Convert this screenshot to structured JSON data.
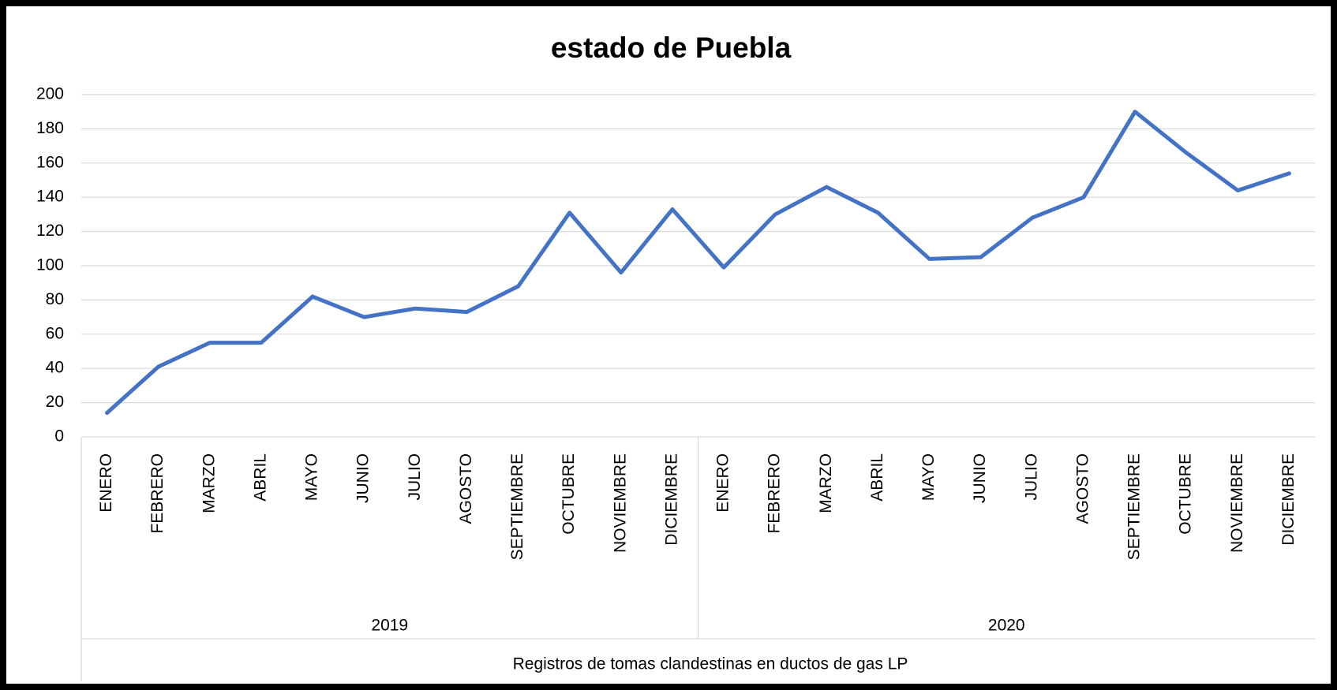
{
  "chart_data": {
    "type": "line",
    "title": "estado de Puebla",
    "x_label": "Registros de tomas clandestinas  en ductos de gas LP",
    "groups": [
      {
        "name": "2019",
        "categories": [
          "ENERO",
          "FEBRERO",
          "MARZO",
          "ABRIL",
          "MAYO",
          "JUNIO",
          "JULIO",
          "AGOSTO",
          "SEPTIEMBRE",
          "OCTUBRE",
          "NOVIEMBRE",
          "DICIEMBRE"
        ]
      },
      {
        "name": "2020",
        "categories": [
          "ENERO",
          "FEBRERO",
          "MARZO",
          "ABRIL",
          "MAYO",
          "JUNIO",
          "JULIO",
          "AGOSTO",
          "SEPTIEMBRE",
          "OCTUBRE",
          "NOVIEMBRE",
          "DICIEMBRE"
        ]
      }
    ],
    "color": "#4472c4",
    "values": [
      14,
      41,
      55,
      55,
      82,
      70,
      75,
      73,
      88,
      131,
      96,
      133,
      99,
      130,
      146,
      131,
      104,
      105,
      128,
      140,
      190,
      166,
      144,
      154
    ],
    "ylim": [
      0,
      200
    ],
    "yticks": [
      0,
      20,
      40,
      60,
      80,
      100,
      120,
      140,
      160,
      180,
      200
    ],
    "grid": true
  }
}
